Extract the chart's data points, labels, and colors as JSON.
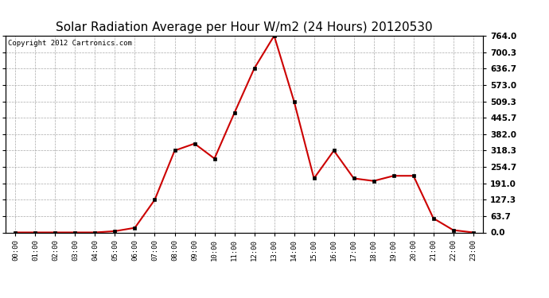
{
  "title": "Solar Radiation Average per Hour W/m2 (24 Hours) 20120530",
  "copyright": "Copyright 2012 Cartronics.com",
  "hours": [
    "00:00",
    "01:00",
    "02:00",
    "03:00",
    "04:00",
    "05:00",
    "06:00",
    "07:00",
    "08:00",
    "09:00",
    "10:00",
    "11:00",
    "12:00",
    "13:00",
    "14:00",
    "15:00",
    "16:00",
    "17:00",
    "18:00",
    "19:00",
    "20:00",
    "21:00",
    "22:00",
    "23:00"
  ],
  "values": [
    0,
    0,
    0,
    0,
    0,
    5,
    18,
    127,
    318,
    345,
    287,
    464,
    637,
    764,
    509,
    210,
    318,
    210,
    200,
    220,
    220,
    55,
    9,
    0
  ],
  "line_color": "#cc0000",
  "marker": "s",
  "marker_size": 3,
  "bg_color": "#ffffff",
  "grid_color": "#aaaaaa",
  "ymin": 0,
  "ymax": 764.0,
  "yticks": [
    0.0,
    63.7,
    127.3,
    191.0,
    254.7,
    318.3,
    382.0,
    445.7,
    509.3,
    573.0,
    636.7,
    700.3,
    764.0
  ],
  "title_fontsize": 11,
  "copyright_fontsize": 6.5
}
